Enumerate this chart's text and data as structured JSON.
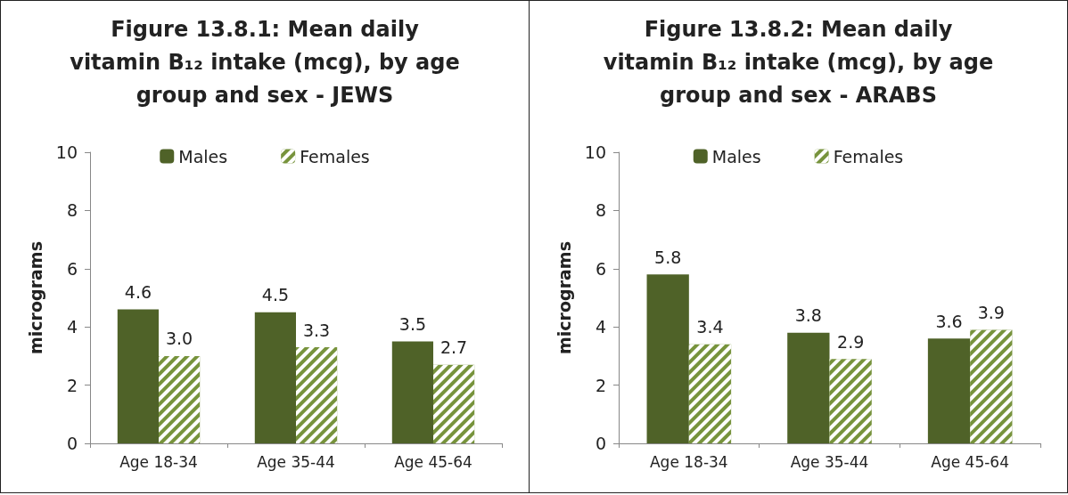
{
  "chart_data": [
    {
      "type": "bar",
      "title": "Figure 13.8.1: Mean daily vitamin B₁₂ intake (mcg), by age group and sex - JEWS",
      "ylabel": "micrograms",
      "categories": [
        "Age 18-34",
        "Age 35-44",
        "Age 45-64"
      ],
      "series": [
        {
          "name": "Males",
          "color": "#4f6228",
          "values": [
            4.6,
            4.5,
            3.5
          ],
          "value_labels": [
            "4.6",
            "4.5",
            "3.5"
          ]
        },
        {
          "name": "Females",
          "color": "#77933c",
          "values": [
            3.0,
            3.3,
            2.7
          ],
          "value_labels": [
            "3.0",
            "3.3",
            "2.7"
          ]
        }
      ],
      "ylim": [
        0,
        10
      ],
      "yticks": [
        0,
        2,
        4,
        6,
        8,
        10
      ],
      "grid": false,
      "legend": "top"
    },
    {
      "type": "bar",
      "title": "Figure 13.8.2: Mean daily vitamin B₁₂ intake (mcg), by age group and sex - ARABS",
      "ylabel": "micrograms",
      "categories": [
        "Age 18-34",
        "Age 35-44",
        "Age 45-64"
      ],
      "series": [
        {
          "name": "Males",
          "color": "#4f6228",
          "values": [
            5.8,
            3.8,
            3.6
          ]
        },
        {
          "name": "Females",
          "color": "#77933c",
          "values": [
            3.4,
            2.9,
            3.9
          ]
        }
      ],
      "ylim": [
        0,
        10
      ],
      "yticks": [
        0,
        2,
        4,
        6,
        8,
        10
      ],
      "grid": false,
      "legend": "top",
      "data_labels": true
    }
  ]
}
